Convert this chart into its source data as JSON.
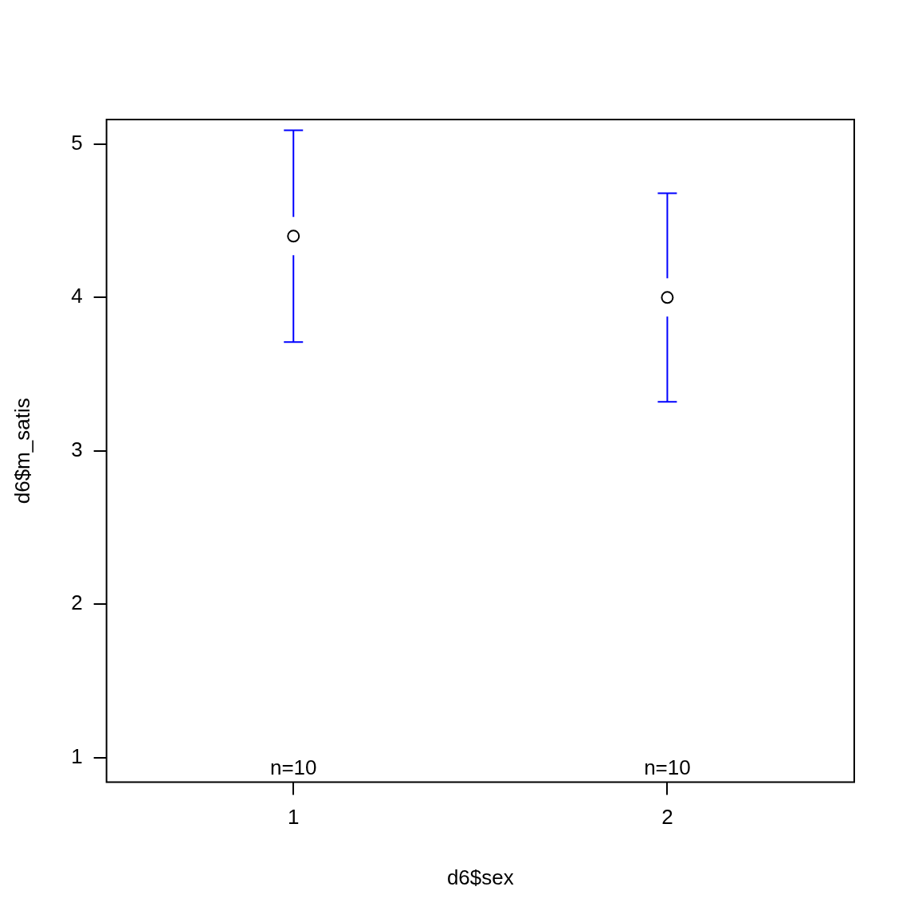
{
  "chart_data": {
    "type": "scatter",
    "xlabel": "d6$sex",
    "ylabel": "d6$m_satis",
    "categories": [
      "1",
      "2"
    ],
    "series": [
      {
        "color": "#000000",
        "values": [
          4.4,
          4.0
        ],
        "errors": [
          [
            3.71,
            5.09
          ],
          [
            3.32,
            4.68
          ]
        ]
      }
    ],
    "marker": "circle",
    "ylim": [
      0.84,
      5.16
    ],
    "yticks": [
      1,
      2,
      3,
      4,
      5
    ],
    "grid": false,
    "legend": false,
    "annotations": [
      "n=10",
      "n=10"
    ]
  }
}
